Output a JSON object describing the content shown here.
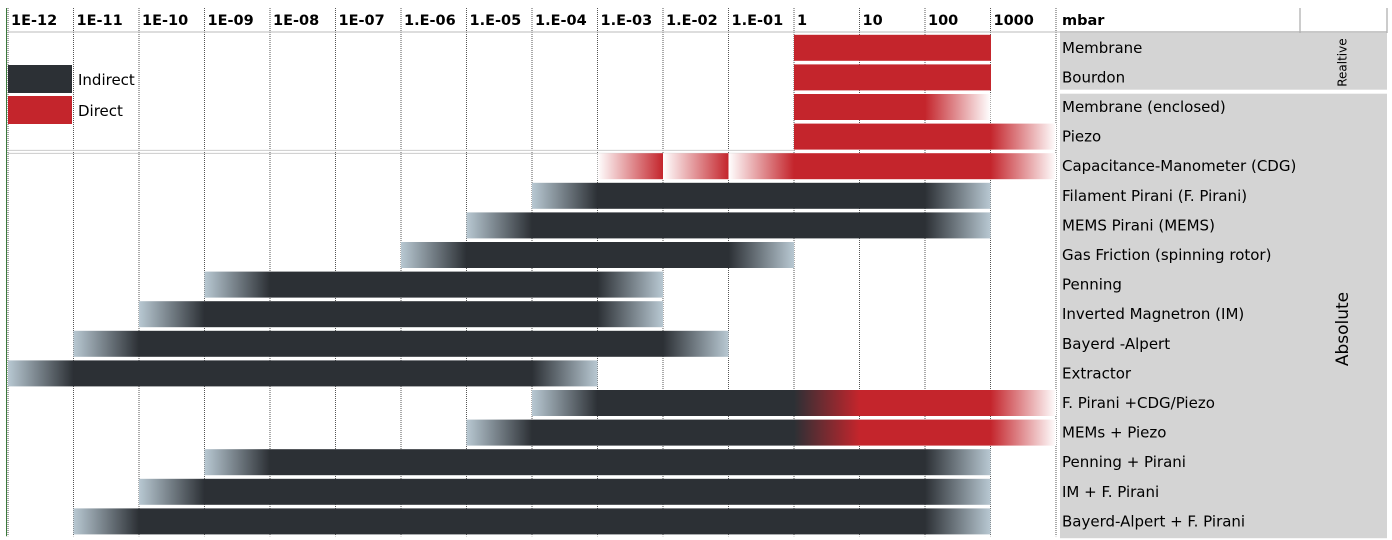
{
  "chart_data": {
    "type": "bar",
    "title": "",
    "unit": "mbar",
    "x_scale": "log",
    "xlim": [
      1e-12,
      10000
    ],
    "tick_labels": [
      "1E-12",
      "1E-11",
      "1E-10",
      "1E-09",
      "1E-08",
      "1E-07",
      "1.E-06",
      "1.E-05",
      "1.E-04",
      "1.E-03",
      "1.E-02",
      "1.E-01",
      "1",
      "10",
      "100",
      "1000"
    ],
    "groups": [
      {
        "label": "Realtive",
        "rows": [
          1,
          2
        ]
      },
      {
        "label": "Absolute",
        "rows": [
          3,
          18
        ]
      }
    ],
    "legend": [
      {
        "label": "Indirect",
        "color": "#2c3035"
      },
      {
        "label": "Direct",
        "color": "#c4252c"
      }
    ],
    "colors": {
      "indirect": "#2c3035",
      "direct": "#c4252c",
      "fade_indirect": "#b8c8d2",
      "fade_direct": "#ffffff",
      "group_panel": "#d4d4d4"
    },
    "gauges": [
      {
        "name": "Membrane",
        "segments": [
          {
            "type": "direct",
            "from": 1,
            "to": 1000
          }
        ]
      },
      {
        "name": "Bourdon",
        "segments": [
          {
            "type": "direct",
            "from": 1,
            "to": 1000
          }
        ]
      },
      {
        "name": "Membrane (enclosed)",
        "segments": [
          {
            "type": "direct",
            "from": 1,
            "to": 1000,
            "fade_high": true
          }
        ]
      },
      {
        "name": "Piezo",
        "segments": [
          {
            "type": "direct",
            "from": 1,
            "to": 10000,
            "fade_high": true
          }
        ]
      },
      {
        "name": "Capacitance-Manometer (CDG)",
        "segments": [
          {
            "type": "direct",
            "from": 0.001,
            "to": 0.01,
            "fade_low": true
          },
          {
            "type": "direct",
            "from": 0.01,
            "to": 0.1,
            "fade_low": true
          },
          {
            "type": "direct",
            "from": 0.1,
            "to": 1,
            "fade_low": true
          },
          {
            "type": "direct",
            "from": 1,
            "to": 10000,
            "fade_high": true
          }
        ]
      },
      {
        "name": "Filament Pirani (F. Pirani)",
        "segments": [
          {
            "type": "indirect",
            "from": 0.0001,
            "to": 1000,
            "fade_low": true,
            "fade_high": true
          }
        ]
      },
      {
        "name": "MEMS Pirani (MEMS)",
        "segments": [
          {
            "type": "indirect",
            "from": 1e-05,
            "to": 1000,
            "fade_low": true,
            "fade_high": true
          }
        ]
      },
      {
        "name": "Gas Friction (spinning rotor)",
        "segments": [
          {
            "type": "indirect",
            "from": 1e-06,
            "to": 1,
            "fade_low": true,
            "fade_high": true
          }
        ]
      },
      {
        "name": "Penning",
        "segments": [
          {
            "type": "indirect",
            "from": 1e-09,
            "to": 0.01,
            "fade_low": true,
            "fade_high": true
          }
        ]
      },
      {
        "name": "Inverted Magnetron (IM)",
        "segments": [
          {
            "type": "indirect",
            "from": 1e-10,
            "to": 0.01,
            "fade_low": true,
            "fade_high": true
          }
        ]
      },
      {
        "name": "Bayerd -Alpert",
        "segments": [
          {
            "type": "indirect",
            "from": 1e-11,
            "to": 0.1,
            "fade_low": true,
            "fade_high": true
          }
        ]
      },
      {
        "name": "Extractor",
        "segments": [
          {
            "type": "indirect",
            "from": 1e-12,
            "to": 0.001,
            "fade_low": true,
            "fade_high": true
          }
        ]
      },
      {
        "name": "F. Pirani +CDG/Piezo",
        "segments": [
          {
            "type": "indirect",
            "from": 0.0001,
            "to": 1,
            "fade_low": true
          },
          {
            "type": "blend",
            "from": 1,
            "to": 10
          },
          {
            "type": "direct",
            "from": 10,
            "to": 10000,
            "fade_high": true
          }
        ]
      },
      {
        "name": "MEMs  + Piezo",
        "segments": [
          {
            "type": "indirect",
            "from": 1e-05,
            "to": 1,
            "fade_low": true
          },
          {
            "type": "blend",
            "from": 1,
            "to": 10
          },
          {
            "type": "direct",
            "from": 10,
            "to": 10000,
            "fade_high": true
          }
        ]
      },
      {
        "name": "Penning + Pirani",
        "segments": [
          {
            "type": "indirect",
            "from": 1e-09,
            "to": 1000,
            "fade_low": true,
            "fade_high": true
          }
        ]
      },
      {
        "name": "IM + F. Pirani",
        "segments": [
          {
            "type": "indirect",
            "from": 1e-10,
            "to": 1000,
            "fade_low": true,
            "fade_high": true
          }
        ]
      },
      {
        "name": "Bayerd-Alpert + F. Pirani",
        "segments": [
          {
            "type": "indirect",
            "from": 1e-11,
            "to": 1000,
            "fade_low": true,
            "fade_high": true
          }
        ]
      }
    ]
  }
}
